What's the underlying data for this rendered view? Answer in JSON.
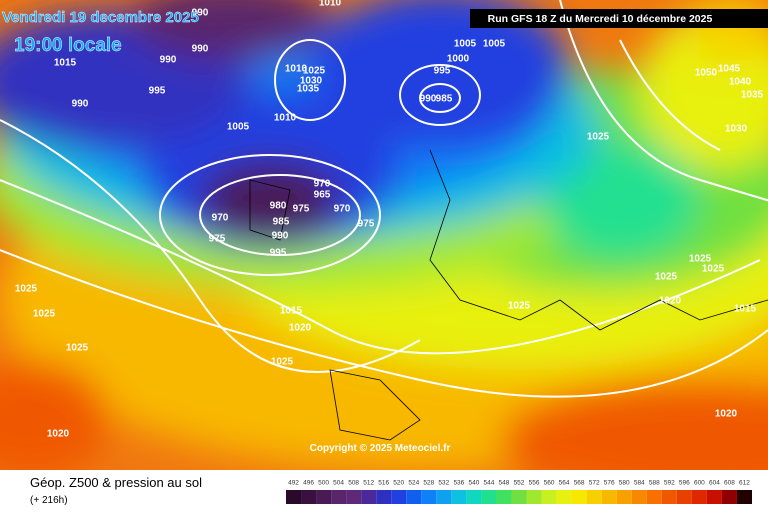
{
  "header": {
    "date": "Vendredi 19 decembre 2025",
    "time": "19:00 locale",
    "run": "Run GFS 18 Z du Mercredi 10 décembre 2025"
  },
  "copyright": "Copyright © 2025 Meteociel.fr",
  "footer": {
    "title": "Géop. Z500 & pression au sol",
    "lead": "(+ 216h)"
  },
  "scale": {
    "values": [
      492,
      496,
      500,
      504,
      508,
      512,
      516,
      520,
      524,
      528,
      532,
      536,
      540,
      544,
      548,
      552,
      556,
      560,
      564,
      568,
      572,
      576,
      580,
      584,
      588,
      592,
      596,
      600,
      604,
      608,
      612
    ],
    "colors": [
      "#2a0a2a",
      "#3a1040",
      "#4a1a55",
      "#5a256a",
      "#602878",
      "#4a2a9a",
      "#3030c0",
      "#2040e0",
      "#1060f0",
      "#1080f8",
      "#10a0f0",
      "#10c0e0",
      "#10d8c0",
      "#20e090",
      "#40e060",
      "#70e040",
      "#a0e830",
      "#c8f020",
      "#e8f010",
      "#f8e800",
      "#f8d000",
      "#f8b800",
      "#f8a000",
      "#f88800",
      "#f87000",
      "#f05800",
      "#e84000",
      "#e02800",
      "#c81000",
      "#900000",
      "#200000"
    ]
  },
  "isobars": [
    "1010",
    "1015",
    "990",
    "990",
    "990",
    "995",
    "990",
    "1005",
    "1005",
    "1000",
    "995",
    "990",
    "985",
    "1025",
    "1030",
    "1035",
    "1010",
    "1005",
    "1010",
    "970",
    "965",
    "970",
    "975",
    "980",
    "985",
    "990",
    "995",
    "970",
    "975",
    "975",
    "1015",
    "1020",
    "1025",
    "1025",
    "1025",
    "1025",
    "1020",
    "1025",
    "1025",
    "1025",
    "1025",
    "1020",
    "1015",
    "1020",
    "1025",
    "1030",
    "1050",
    "1045",
    "1040",
    "1035"
  ]
}
